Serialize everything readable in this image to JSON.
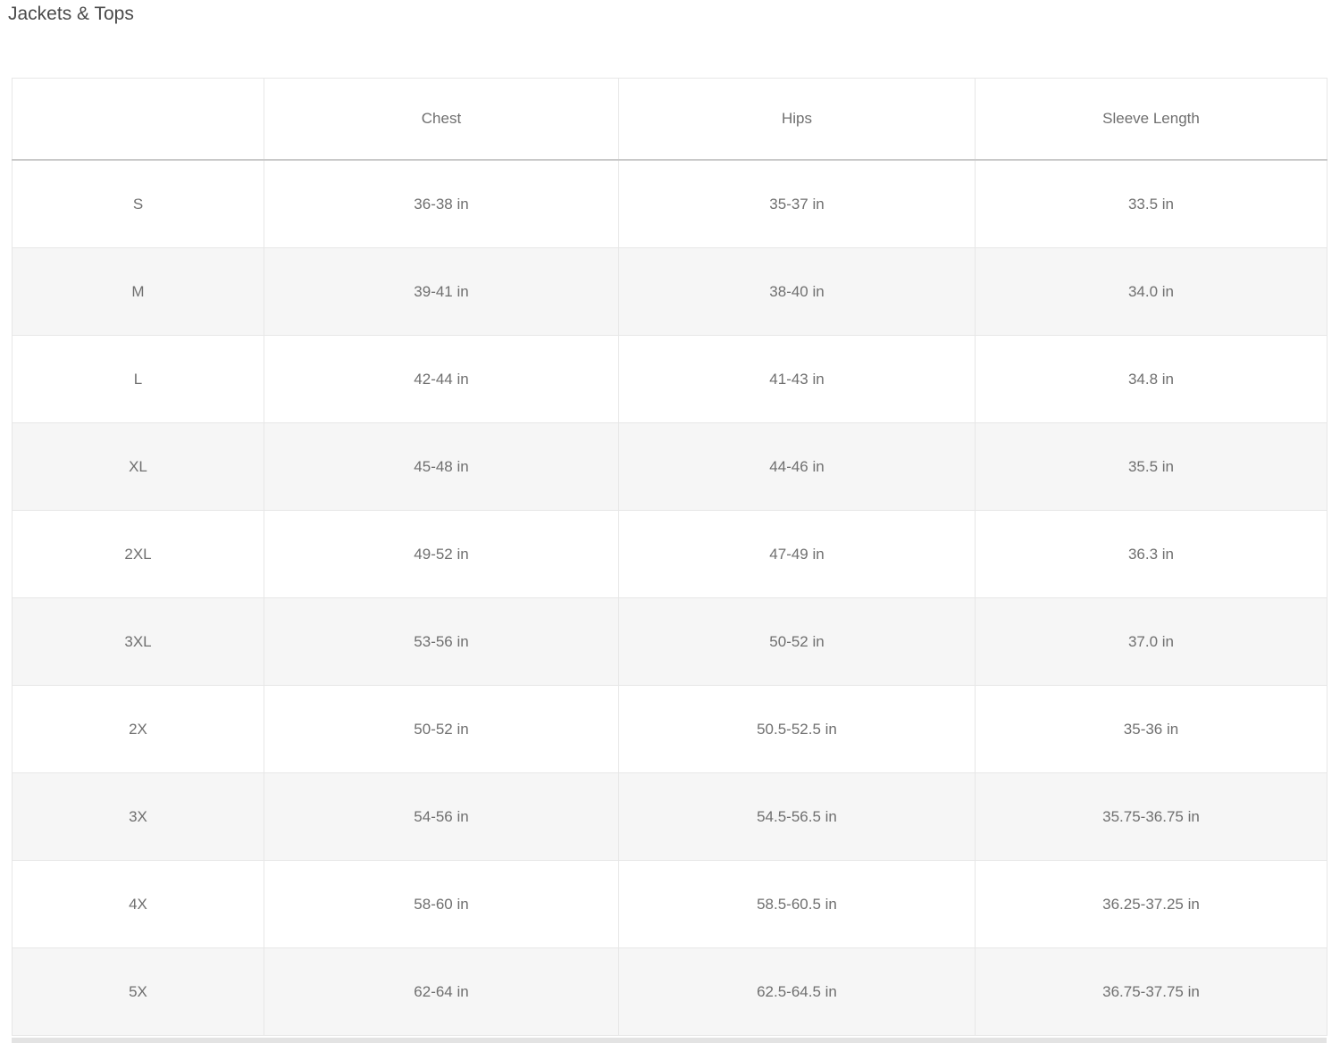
{
  "page": {
    "title": "Jackets & Tops"
  },
  "chart_data": {
    "type": "table",
    "title": "Jackets & Tops",
    "columns": [
      "",
      "Chest",
      "Hips",
      "Sleeve Length"
    ],
    "rows": [
      [
        "S",
        "36-38 in",
        "35-37 in",
        "33.5 in"
      ],
      [
        "M",
        "39-41 in",
        "38-40 in",
        "34.0 in"
      ],
      [
        "L",
        "42-44 in",
        "41-43 in",
        "34.8 in"
      ],
      [
        "XL",
        "45-48 in",
        "44-46 in",
        "35.5 in"
      ],
      [
        "2XL",
        "49-52 in",
        "47-49 in",
        "36.3 in"
      ],
      [
        "3XL",
        "53-56 in",
        "50-52 in",
        "37.0 in"
      ],
      [
        "2X",
        "50-52 in",
        "50.5-52.5 in",
        "35-36 in"
      ],
      [
        "3X",
        "54-56 in",
        "54.5-56.5 in",
        "35.75-36.75 in"
      ],
      [
        "4X",
        "58-60 in",
        "58.5-60.5 in",
        "36.25-37.25 in"
      ],
      [
        "5X",
        "62-64 in",
        "62.5-64.5 in",
        "36.75-37.75 in"
      ]
    ],
    "unit": "in",
    "layout_hints": {
      "zebra_striping": "alternate rows shaded starting with second data row",
      "cell_alignment": "center"
    }
  },
  "colors": {
    "background": "#ffffff",
    "title_text": "#4a4a4a",
    "cell_text": "#6f6f6f",
    "border": "#e7e7e7",
    "header_bottom_border": "#c9c9c9",
    "alt_row_background": "#f6f6f6",
    "bottom_bar": "#e3e3e3"
  }
}
